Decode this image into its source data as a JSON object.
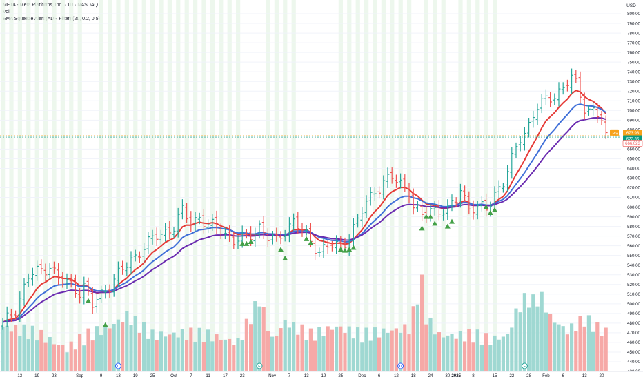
{
  "legend": {
    "title": "META - Meta Platforms, Inc. · 1D · NASDAQ",
    "volume": "Vol",
    "indicator": "EMA Squeeze Alert (ADR Filter) (20, 0.2, 0.5)"
  },
  "colors": {
    "up": "#26a69a",
    "down": "#ef5350",
    "vol_up": "#9fd8d2",
    "vol_down": "#f6a9a7",
    "ema_fast": "#e53935",
    "ema_mid": "#3f6fd8",
    "ema_slow": "#6a2bb0",
    "squeeze": "#43a047",
    "band": "#e8f5e9",
    "price_tag": "#089981",
    "pre_tag": "#f7a21b"
  },
  "chart_data": {
    "type": "bar",
    "currency": "USD",
    "y_axis": {
      "range": [
        430,
        810
      ],
      "ticks": [
        "800.00",
        "790.00",
        "780.00",
        "770.00",
        "760.00",
        "750.00",
        "740.00",
        "730.00",
        "720.00",
        "710.00",
        "700.00",
        "690.00",
        "680.00",
        "660.00",
        "650.00",
        "640.00",
        "630.00",
        "620.00",
        "610.00",
        "600.00",
        "590.00",
        "580.00",
        "570.00",
        "560.00",
        "550.00",
        "540.00",
        "530.00",
        "520.00",
        "510.00",
        "500.00",
        "490.00",
        "480.00",
        "470.00",
        "460.00",
        "450.00",
        "440.00",
        "430.00"
      ]
    },
    "x_axis": {
      "ticks": [
        {
          "label": "13",
          "i": 4
        },
        {
          "label": "19",
          "i": 8
        },
        {
          "label": "23",
          "i": 12
        },
        {
          "label": "Sep",
          "i": 18
        },
        {
          "label": "9",
          "i": 23
        },
        {
          "label": "13",
          "i": 27
        },
        {
          "label": "19",
          "i": 31
        },
        {
          "label": "25",
          "i": 35
        },
        {
          "label": "Oct",
          "i": 40
        },
        {
          "label": "7",
          "i": 44
        },
        {
          "label": "11",
          "i": 48
        },
        {
          "label": "17",
          "i": 52
        },
        {
          "label": "23",
          "i": 56
        },
        {
          "label": "Nov",
          "i": 63
        },
        {
          "label": "7",
          "i": 67
        },
        {
          "label": "13",
          "i": 71
        },
        {
          "label": "19",
          "i": 75
        },
        {
          "label": "25",
          "i": 79
        },
        {
          "label": "Dec",
          "i": 84
        },
        {
          "label": "6",
          "i": 88
        },
        {
          "label": "12",
          "i": 92
        },
        {
          "label": "18",
          "i": 96
        },
        {
          "label": "24",
          "i": 100
        },
        {
          "label": "30",
          "i": 104
        },
        {
          "label": "2025",
          "i": 106
        },
        {
          "label": "8",
          "i": 110
        },
        {
          "label": "15",
          "i": 115
        },
        {
          "label": "22",
          "i": 119
        },
        {
          "label": "28",
          "i": 123
        },
        {
          "label": "Feb",
          "i": 127
        },
        {
          "label": "6",
          "i": 131
        },
        {
          "label": "13",
          "i": 136
        },
        {
          "label": "20",
          "i": 140
        }
      ]
    },
    "ohlc_anchors": [
      [
        0,
        478
      ],
      [
        3,
        495
      ],
      [
        6,
        528
      ],
      [
        9,
        535
      ],
      [
        11,
        540
      ],
      [
        13,
        525
      ],
      [
        16,
        520
      ],
      [
        18,
        513
      ],
      [
        19,
        518
      ],
      [
        21,
        498
      ],
      [
        23,
        510
      ],
      [
        25,
        520
      ],
      [
        28,
        535
      ],
      [
        32,
        555
      ],
      [
        36,
        570
      ],
      [
        40,
        580
      ],
      [
        42,
        595
      ],
      [
        44,
        585
      ],
      [
        46,
        590
      ],
      [
        48,
        580
      ],
      [
        51,
        578
      ],
      [
        54,
        565
      ],
      [
        57,
        568
      ],
      [
        60,
        580
      ],
      [
        62,
        568
      ],
      [
        64,
        565
      ],
      [
        66,
        578
      ],
      [
        68,
        585
      ],
      [
        71,
        570
      ],
      [
        74,
        555
      ],
      [
        77,
        560
      ],
      [
        79,
        560
      ],
      [
        81,
        570
      ],
      [
        83,
        585
      ],
      [
        85,
        605
      ],
      [
        87,
        618
      ],
      [
        89,
        625
      ],
      [
        91,
        630
      ],
      [
        93,
        625
      ],
      [
        95,
        618
      ],
      [
        96,
        600
      ],
      [
        98,
        590
      ],
      [
        100,
        598
      ],
      [
        102,
        598
      ],
      [
        104,
        595
      ],
      [
        106,
        608
      ],
      [
        107,
        620
      ],
      [
        109,
        600
      ],
      [
        111,
        598
      ],
      [
        113,
        598
      ],
      [
        115,
        615
      ],
      [
        117,
        625
      ],
      [
        119,
        648
      ],
      [
        121,
        673
      ],
      [
        123,
        685
      ],
      [
        125,
        703
      ],
      [
        127,
        710
      ],
      [
        129,
        718
      ],
      [
        131,
        722
      ],
      [
        133,
        734
      ],
      [
        134,
        727
      ],
      [
        136,
        705
      ],
      [
        138,
        698
      ],
      [
        140,
        690
      ],
      [
        141,
        672
      ]
    ],
    "volume_anchors": [
      [
        0,
        0.5
      ],
      [
        8,
        0.42
      ],
      [
        15,
        0.25
      ],
      [
        20,
        0.4
      ],
      [
        25,
        0.5
      ],
      [
        29,
        0.62
      ],
      [
        35,
        0.4
      ],
      [
        42,
        0.42
      ],
      [
        48,
        0.4
      ],
      [
        55,
        0.32
      ],
      [
        60,
        0.8
      ],
      [
        63,
        0.35
      ],
      [
        66,
        0.55
      ],
      [
        72,
        0.4
      ],
      [
        78,
        0.5
      ],
      [
        84,
        0.4
      ],
      [
        90,
        0.45
      ],
      [
        95,
        0.48
      ],
      [
        98,
        1.0
      ],
      [
        99,
        0.6
      ],
      [
        102,
        0.4
      ],
      [
        106,
        0.4
      ],
      [
        110,
        0.4
      ],
      [
        114,
        0.35
      ],
      [
        118,
        0.4
      ],
      [
        120,
        0.65
      ],
      [
        122,
        0.8
      ],
      [
        124,
        0.78
      ],
      [
        126,
        0.82
      ],
      [
        128,
        0.6
      ],
      [
        132,
        0.45
      ],
      [
        136,
        0.58
      ],
      [
        140,
        0.45
      ]
    ],
    "squeeze_bands": [
      0,
      19,
      23,
      56,
      62,
      69,
      79,
      95,
      99,
      103,
      107,
      116
    ],
    "squeeze_alerts": [
      {
        "i": 20,
        "price": 503
      },
      {
        "i": 24,
        "price": 478
      },
      {
        "i": 56,
        "price": 562
      },
      {
        "i": 57,
        "price": 562
      },
      {
        "i": 58,
        "price": 564
      },
      {
        "i": 65,
        "price": 556
      },
      {
        "i": 66,
        "price": 547
      },
      {
        "i": 71,
        "price": 567
      },
      {
        "i": 72,
        "price": 563
      },
      {
        "i": 79,
        "price": 556
      },
      {
        "i": 80,
        "price": 555
      },
      {
        "i": 81,
        "price": 556
      },
      {
        "i": 82,
        "price": 558
      },
      {
        "i": 98,
        "price": 578
      },
      {
        "i": 99,
        "price": 590
      },
      {
        "i": 100,
        "price": 590
      },
      {
        "i": 101,
        "price": 583
      },
      {
        "i": 104,
        "price": 580
      },
      {
        "i": 105,
        "price": 585
      },
      {
        "i": 113,
        "price": 600
      },
      {
        "i": 114,
        "price": 594
      },
      {
        "i": 115,
        "price": 597
      }
    ],
    "event_markers": [
      {
        "i": 27,
        "label": "D"
      },
      {
        "i": 60,
        "label": "E"
      },
      {
        "i": 93,
        "label": "D"
      },
      {
        "i": 122,
        "label": "E"
      }
    ],
    "price_labels": {
      "pre": {
        "tag": "Pre",
        "value": "673.93"
      },
      "last": {
        "value": "672.36"
      },
      "low": {
        "value": "666.023"
      }
    }
  }
}
